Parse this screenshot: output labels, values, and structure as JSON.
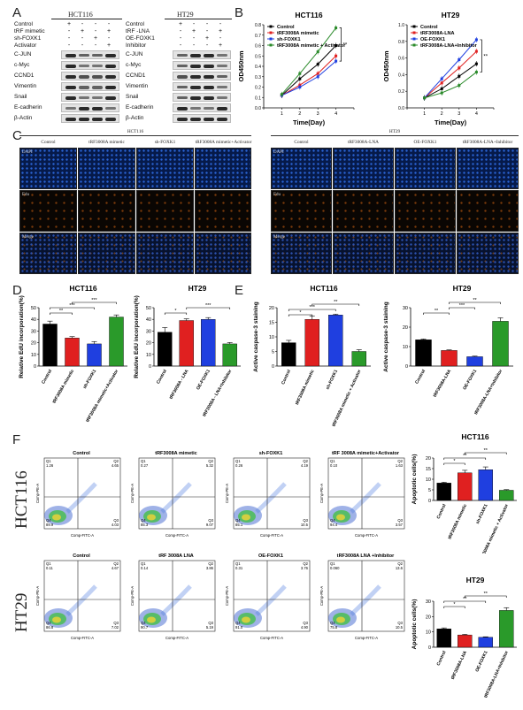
{
  "panels": {
    "a": "A",
    "b": "B",
    "c": "C",
    "d": "D",
    "e": "E",
    "f": "F"
  },
  "western_blot": {
    "hct116": {
      "title": "HCT116",
      "conditions": [
        {
          "label": "Control",
          "signs": [
            "+",
            "-",
            "-",
            "-"
          ]
        },
        {
          "label": "tRF mimetic",
          "signs": [
            "-",
            "+",
            "-",
            "+"
          ]
        },
        {
          "label": "sh-FOXK1",
          "signs": [
            "-",
            "-",
            "+",
            "-"
          ]
        },
        {
          "label": "Activator",
          "signs": [
            "-",
            "-",
            "-",
            "+"
          ]
        }
      ],
      "bands": [
        "C-JUN",
        "c-Myc",
        "CCND1",
        "Vimentin",
        "Snail",
        "E-cadherin",
        "β-Actin"
      ]
    },
    "ht29": {
      "title": "HT29",
      "conditions": [
        {
          "label": "Control",
          "signs": [
            "+",
            "-",
            "-",
            "-"
          ]
        },
        {
          "label": "tRF -LNA",
          "signs": [
            "-",
            "+",
            "-",
            "+"
          ]
        },
        {
          "label": "OE-FOXK1",
          "signs": [
            "-",
            "-",
            "+",
            "-"
          ]
        },
        {
          "label": "Inhibitor",
          "signs": [
            "-",
            "-",
            "-",
            "+"
          ]
        }
      ],
      "bands": [
        "C-JUN",
        "c-Myc",
        "CCND1",
        "Vimentin",
        "Snail",
        "E-cadherin",
        "β-Actin"
      ]
    }
  },
  "microscopy": {
    "hct116": {
      "title": "HCT116",
      "columns": [
        "Control",
        "tRF3008A mimetic",
        "sh-FOXK1",
        "tRF3008A mimetic+Activator"
      ],
      "rows": [
        "DAPI",
        "Edu",
        "Merge"
      ]
    },
    "ht29": {
      "title": "HT29",
      "columns": [
        "Control",
        "tRF3008A-LNA",
        "OE-FOXK1",
        "tRF3008A-LNA+Inhibitor"
      ],
      "rows": [
        "DAPI",
        "Edu",
        "Merge"
      ]
    }
  },
  "flow": {
    "hct116": {
      "cell_line": "HCT116",
      "tiles": [
        {
          "title": "Control",
          "q1": "Q1",
          "q1v": "1.26",
          "q2": "Q2",
          "q2v": "4.65",
          "q3": "Q3",
          "q3v": "4.03",
          "q4": "Q4",
          "q4v": "89.9"
        },
        {
          "title": "tRF3008A mimetic",
          "q1": "Q1",
          "q1v": "0.27",
          "q2": "Q2",
          "q2v": "5.32",
          "q3": "Q3",
          "q3v": "9.07",
          "q4": "Q4",
          "q4v": "85.3"
        },
        {
          "title": "sh-FOXK1",
          "q1": "Q1",
          "q1v": "0.26",
          "q2": "Q2",
          "q2v": "4.19",
          "q3": "Q3",
          "q3v": "10.5",
          "q4": "Q4",
          "q4v": "85.1"
        },
        {
          "title": "tRF 3008A mimetic+Activator",
          "q1": "Q1",
          "q1v": "0.10",
          "q2": "Q2",
          "q2v": "1.63",
          "q3": "Q3",
          "q3v": "3.57",
          "q4": "Q4",
          "q4v": "94.4"
        }
      ]
    },
    "ht29": {
      "cell_line": "HT29",
      "tiles": [
        {
          "title": "Control",
          "q1": "Q1",
          "q1v": "0.11",
          "q2": "Q2",
          "q2v": "4.67",
          "q3": "Q3",
          "q3v": "7.02",
          "q4": "Q4",
          "q4v": "86.8"
        },
        {
          "title": "tRF 3008A LNA",
          "q1": "Q1",
          "q1v": "0.14",
          "q2": "Q2",
          "q2v": "3.86",
          "q3": "Q3",
          "q3v": "5.19",
          "q4": "Q4",
          "q4v": "90.7"
        },
        {
          "title": "OE-FOXK1",
          "q1": "Q1",
          "q1v": "0.31",
          "q2": "Q2",
          "q2v": "3.76",
          "q3": "Q3",
          "q3v": "4.90",
          "q4": "Q4",
          "q4v": "91.0"
        },
        {
          "title": "tRF3008A LNA +Inhibitor",
          "q1": "Q1",
          "q1v": "0.060",
          "q2": "Q2",
          "q2v": "13.6",
          "q3": "Q3",
          "q3v": "10.5",
          "q4": "Q4",
          "q4v": "75.8"
        }
      ]
    },
    "axis_x": "Comp-FITC-A",
    "axis_y": "Comp-PE-A"
  },
  "chart_data": [
    {
      "id": "b1",
      "type": "line",
      "title": "HCT116",
      "xlabel": "Time(Day)",
      "ylabel": "OD450nm",
      "x": [
        1,
        2,
        3,
        4
      ],
      "xlim": [
        0,
        5
      ],
      "ylim": [
        0,
        0.8
      ],
      "yticks": [
        0.0,
        0.1,
        0.2,
        0.3,
        0.4,
        0.5,
        0.6,
        0.7,
        0.8
      ],
      "legend_position": "top-left",
      "series": [
        {
          "name": "Control",
          "color": "#000000",
          "values": [
            0.12,
            0.28,
            0.42,
            0.6
          ]
        },
        {
          "name": "tRF3008A mimetic",
          "color": "#e02020",
          "values": [
            0.12,
            0.22,
            0.33,
            0.5
          ]
        },
        {
          "name": "sh-FOXK1",
          "color": "#1f3fe0",
          "values": [
            0.12,
            0.2,
            0.3,
            0.45
          ]
        },
        {
          "name": "tRF3008A mimetic + Activator",
          "color": "#2a8a2a",
          "values": [
            0.13,
            0.33,
            0.54,
            0.77
          ]
        }
      ],
      "annotation": "**"
    },
    {
      "id": "b2",
      "type": "line",
      "title": "HT29",
      "xlabel": "Time(Day)",
      "ylabel": "OD450nm",
      "x": [
        1,
        2,
        3,
        4
      ],
      "xlim": [
        0,
        5
      ],
      "ylim": [
        0,
        1.0
      ],
      "yticks": [
        0.0,
        0.2,
        0.4,
        0.6,
        0.8,
        1.0
      ],
      "legend_position": "top-left",
      "series": [
        {
          "name": "Control",
          "color": "#000000",
          "values": [
            0.12,
            0.23,
            0.38,
            0.53
          ]
        },
        {
          "name": "tRF3008A-LNA",
          "color": "#e02020",
          "values": [
            0.12,
            0.3,
            0.48,
            0.68
          ]
        },
        {
          "name": "OE-FOXK1",
          "color": "#1f3fe0",
          "values": [
            0.12,
            0.35,
            0.58,
            0.82
          ]
        },
        {
          "name": "tRF3008A-LNA+Inhibitor",
          "color": "#2a8a2a",
          "values": [
            0.12,
            0.18,
            0.27,
            0.43
          ]
        }
      ],
      "annotation": "**"
    },
    {
      "id": "d1",
      "type": "bar",
      "title": "HCT116",
      "ylabel": "Relative EdU incorporation(%)",
      "ylim": [
        0,
        50
      ],
      "yticks": [
        0,
        10,
        20,
        30,
        40,
        50
      ],
      "categories": [
        "Control",
        "tRF3008A mimetic",
        "sh-FOXK1",
        "tRF3008A mimetic+Activator"
      ],
      "values": [
        36,
        24,
        19,
        42
      ],
      "errors": [
        2.5,
        1.2,
        2.0,
        1.8
      ],
      "colors": [
        "#000000",
        "#e02020",
        "#1f3fe0",
        "#2a9a2a"
      ],
      "significance": [
        {
          "from": 0,
          "to": 1,
          "label": "**"
        },
        {
          "from": 0,
          "to": 2,
          "label": "***"
        },
        {
          "from": 1,
          "to": 3,
          "label": "***"
        }
      ]
    },
    {
      "id": "d2",
      "type": "bar",
      "title": "HT29",
      "ylabel": "Relative EdU incorporation(%)",
      "ylim": [
        0,
        50
      ],
      "yticks": [
        0,
        10,
        20,
        30,
        40,
        50
      ],
      "categories": [
        "Control",
        "tRF3008A - LNA",
        "OE-FOXK1",
        "tRF3008A - LNA+Inhibitor"
      ],
      "values": [
        29,
        39,
        40,
        19
      ],
      "errors": [
        4.0,
        1.5,
        1.5,
        1.2
      ],
      "colors": [
        "#000000",
        "#e02020",
        "#1f3fe0",
        "#2a9a2a"
      ],
      "significance": [
        {
          "from": 0,
          "to": 1,
          "label": "*"
        },
        {
          "from": 1,
          "to": 3,
          "label": "***"
        }
      ]
    },
    {
      "id": "e1",
      "type": "bar",
      "title": "HCT116",
      "ylabel": "Active caspase-3 staining",
      "ylim": [
        0,
        20
      ],
      "yticks": [
        0,
        5,
        10,
        15,
        20
      ],
      "categories": [
        "Control",
        "tRF3008A mimetic",
        "sh-FOXK1",
        "tRF3008A mimetic + Activator"
      ],
      "values": [
        8,
        16,
        17.5,
        5
      ],
      "errors": [
        0.8,
        1.2,
        0.3,
        0.6
      ],
      "colors": [
        "#000000",
        "#e02020",
        "#1f3fe0",
        "#2a9a2a"
      ],
      "significance": [
        {
          "from": 0,
          "to": 1,
          "label": "*"
        },
        {
          "from": 0,
          "to": 2,
          "label": "***"
        },
        {
          "from": 1,
          "to": 3,
          "label": "**"
        }
      ]
    },
    {
      "id": "e2",
      "type": "bar",
      "title": "HT29",
      "ylabel": "Active caspase-3 staining",
      "ylim": [
        0,
        30
      ],
      "yticks": [
        0,
        10,
        20,
        30
      ],
      "categories": [
        "Control",
        "tRF3008A-LNA",
        "OE-FOXK1",
        "tRF3008A-LNA+Inhibitor"
      ],
      "values": [
        13.5,
        8,
        4.8,
        23
      ],
      "errors": [
        0.4,
        0.3,
        0.3,
        1.8
      ],
      "colors": [
        "#000000",
        "#e02020",
        "#1f3fe0",
        "#2a9a2a"
      ],
      "significance": [
        {
          "from": 0,
          "to": 1,
          "label": "**"
        },
        {
          "from": 1,
          "to": 2,
          "label": "***"
        },
        {
          "from": 1,
          "to": 3,
          "label": "**"
        }
      ]
    },
    {
      "id": "f1",
      "type": "bar",
      "title": "HCT116",
      "ylabel": "Apoptotic cells(%)",
      "ylim": [
        0,
        20
      ],
      "yticks": [
        0,
        5,
        10,
        15,
        20
      ],
      "categories": [
        "Control",
        "tRF3008A mimetic",
        "sh-FOXK1",
        "tRF3008A mimetic + Activator"
      ],
      "values": [
        8.2,
        13,
        14.5,
        4.8
      ],
      "errors": [
        0.4,
        1.2,
        1.3,
        0.3
      ],
      "colors": [
        "#000000",
        "#e02020",
        "#1f3fe0",
        "#2a9a2a"
      ],
      "significance": [
        {
          "from": 0,
          "to": 1,
          "label": "*"
        },
        {
          "from": 0,
          "to": 2,
          "label": "**"
        },
        {
          "from": 1,
          "to": 3,
          "label": "**"
        }
      ]
    },
    {
      "id": "f2",
      "type": "bar",
      "title": "HT29",
      "ylabel": "Apoptotic cells(%)",
      "ylim": [
        0,
        30
      ],
      "yticks": [
        0,
        10,
        20,
        30
      ],
      "categories": [
        "Control",
        "tRF3008A-LNA",
        "OE-FOXK1",
        "tRF3008A-LNA+Inhibitor"
      ],
      "values": [
        12,
        8,
        6.5,
        24
      ],
      "errors": [
        0.6,
        0.4,
        0.3,
        1.8
      ],
      "colors": [
        "#000000",
        "#e02020",
        "#1f3fe0",
        "#2a9a2a"
      ],
      "significance": [
        {
          "from": 0,
          "to": 1,
          "label": "*"
        },
        {
          "from": 0,
          "to": 2,
          "label": "**"
        },
        {
          "from": 1,
          "to": 3,
          "label": "**"
        }
      ]
    }
  ]
}
